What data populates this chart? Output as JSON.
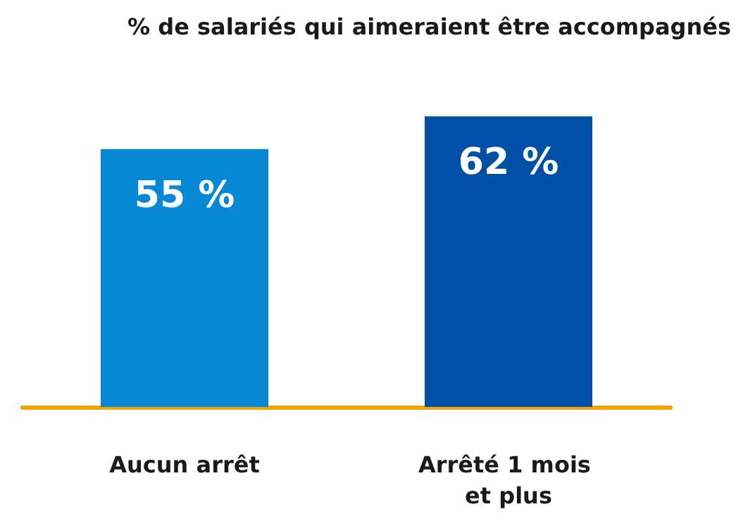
{
  "chart_data": {
    "type": "bar",
    "title": "% de salariés qui aimeraient être accompagnés",
    "categories": [
      "Aucun arrêt",
      "Arrêté 1 mois et plus"
    ],
    "values": [
      55,
      62
    ],
    "colors": [
      "#0788d5",
      "#0050a8"
    ],
    "value_labels": [
      "55 %",
      "62 %"
    ]
  }
}
